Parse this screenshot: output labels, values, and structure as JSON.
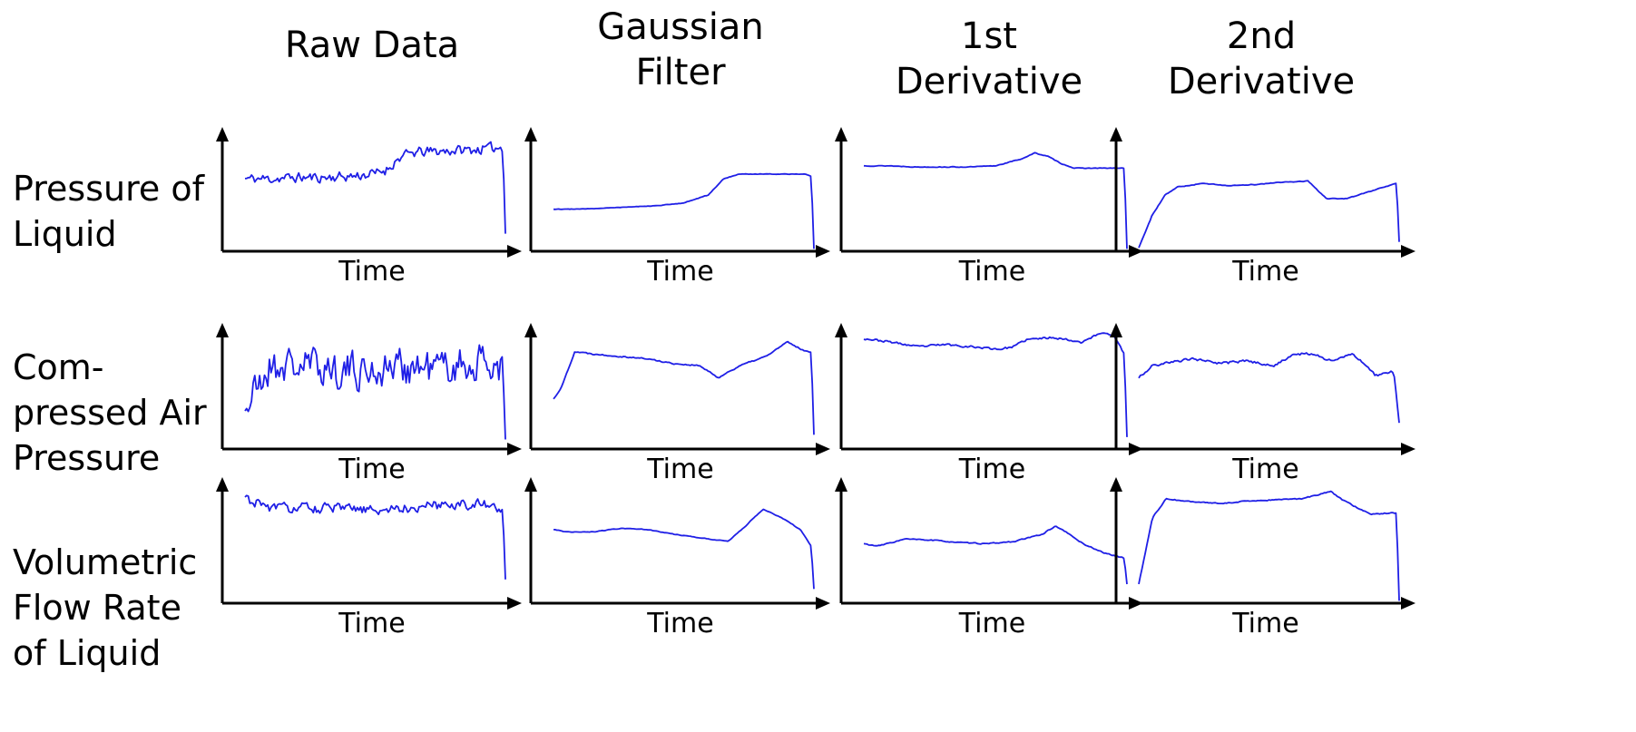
{
  "columns": [
    "Raw Data",
    "Gaussian\nFilter",
    "1st\nDerivative",
    "2nd\nDerivative"
  ],
  "rows": [
    "Pressure of\nLiquid",
    "Com-\npressed Air\nPressure",
    "Volumetric\nFlow Rate\nof Liquid"
  ],
  "line_color": "#1f1fe6",
  "chart_data": [
    {
      "type": "line",
      "xlabel": "Time",
      "seed": 11,
      "noise": 0.06,
      "x": [
        0,
        10,
        20,
        30,
        40,
        50,
        55,
        60,
        65,
        70,
        80,
        90,
        100,
        101
      ],
      "y": [
        0.62,
        0.62,
        0.63,
        0.63,
        0.64,
        0.66,
        0.7,
        0.8,
        0.84,
        0.85,
        0.86,
        0.87,
        0.89,
        0.15
      ]
    },
    {
      "type": "line",
      "xlabel": "Time",
      "seed": 12,
      "noise": 0.003,
      "x": [
        0,
        10,
        20,
        30,
        40,
        50,
        60,
        66,
        72,
        80,
        90,
        98,
        100,
        101
      ],
      "y": [
        0.36,
        0.36,
        0.37,
        0.38,
        0.39,
        0.41,
        0.48,
        0.62,
        0.66,
        0.66,
        0.66,
        0.66,
        0.64,
        0.02
      ]
    },
    {
      "type": "line",
      "xlabel": "Time",
      "seed": 13,
      "noise": 0.004,
      "x": [
        0,
        10,
        20,
        30,
        40,
        50,
        60,
        65,
        70,
        75,
        80,
        90,
        99,
        100
      ],
      "y": [
        0.73,
        0.73,
        0.72,
        0.72,
        0.72,
        0.73,
        0.79,
        0.84,
        0.81,
        0.75,
        0.71,
        0.71,
        0.71,
        0.02
      ]
    },
    {
      "type": "line",
      "xlabel": "Time",
      "seed": 14,
      "noise": 0.004,
      "x": [
        0,
        5,
        10,
        15,
        25,
        35,
        45,
        55,
        65,
        72,
        80,
        90,
        99,
        100
      ],
      "y": [
        0.03,
        0.3,
        0.48,
        0.55,
        0.58,
        0.56,
        0.57,
        0.59,
        0.6,
        0.45,
        0.45,
        0.52,
        0.58,
        0.08
      ]
    },
    {
      "type": "line",
      "xlabel": "Time",
      "seed": 21,
      "noise": 0.22,
      "x": [
        0,
        10,
        20,
        30,
        40,
        50,
        60,
        70,
        80,
        90,
        100,
        101
      ],
      "y": [
        0.34,
        0.7,
        0.7,
        0.7,
        0.66,
        0.66,
        0.7,
        0.68,
        0.7,
        0.72,
        0.7,
        0.08
      ]
    },
    {
      "type": "line",
      "xlabel": "Time",
      "seed": 22,
      "noise": 0.008,
      "x": [
        0,
        3,
        8,
        15,
        25,
        35,
        45,
        55,
        62,
        70,
        80,
        88,
        95,
        97,
        98
      ],
      "y": [
        0.42,
        0.52,
        0.82,
        0.8,
        0.78,
        0.76,
        0.72,
        0.7,
        0.6,
        0.7,
        0.78,
        0.9,
        0.82,
        0.82,
        0.12
      ]
    },
    {
      "type": "line",
      "xlabel": "Time",
      "seed": 23,
      "noise": 0.012,
      "x": [
        0,
        10,
        20,
        30,
        40,
        50,
        55,
        60,
        70,
        80,
        88,
        92,
        96,
        97
      ],
      "y": [
        0.93,
        0.9,
        0.86,
        0.88,
        0.86,
        0.84,
        0.86,
        0.92,
        0.94,
        0.9,
        0.98,
        0.96,
        0.8,
        0.1
      ]
    },
    {
      "type": "line",
      "xlabel": "Time",
      "seed": 24,
      "noise": 0.015,
      "x": [
        0,
        5,
        10,
        20,
        30,
        40,
        50,
        58,
        65,
        72,
        80,
        88,
        95,
        97
      ],
      "y": [
        0.6,
        0.7,
        0.72,
        0.76,
        0.72,
        0.74,
        0.7,
        0.8,
        0.8,
        0.74,
        0.8,
        0.62,
        0.65,
        0.22
      ]
    },
    {
      "type": "line",
      "xlabel": "Time",
      "seed": 31,
      "noise": 0.06,
      "x": [
        0,
        10,
        20,
        30,
        40,
        50,
        60,
        70,
        80,
        90,
        97,
        98,
        99
      ],
      "y": [
        0.88,
        0.8,
        0.8,
        0.8,
        0.79,
        0.78,
        0.8,
        0.82,
        0.84,
        0.83,
        0.8,
        0.8,
        0.2
      ]
    },
    {
      "type": "line",
      "xlabel": "Time",
      "seed": 32,
      "noise": 0.004,
      "x": [
        0,
        5,
        15,
        25,
        35,
        45,
        55,
        65,
        72,
        78,
        85,
        92,
        96,
        97
      ],
      "y": [
        0.62,
        0.6,
        0.6,
        0.63,
        0.62,
        0.58,
        0.55,
        0.52,
        0.66,
        0.79,
        0.72,
        0.62,
        0.48,
        0.12
      ]
    },
    {
      "type": "line",
      "xlabel": "Time",
      "seed": 33,
      "noise": 0.006,
      "x": [
        0,
        5,
        15,
        25,
        35,
        45,
        55,
        65,
        70,
        75,
        80,
        88,
        95,
        96
      ],
      "y": [
        0.5,
        0.48,
        0.54,
        0.53,
        0.51,
        0.5,
        0.52,
        0.58,
        0.65,
        0.58,
        0.5,
        0.42,
        0.38,
        0.16
      ]
    },
    {
      "type": "line",
      "xlabel": "Time",
      "seed": 34,
      "noise": 0.006,
      "x": [
        0,
        5,
        10,
        20,
        30,
        40,
        50,
        60,
        70,
        75,
        80,
        85,
        92,
        94,
        95
      ],
      "y": [
        0.16,
        0.72,
        0.88,
        0.85,
        0.84,
        0.86,
        0.87,
        0.88,
        0.94,
        0.86,
        0.8,
        0.75,
        0.76,
        0.76,
        0.02
      ]
    }
  ]
}
